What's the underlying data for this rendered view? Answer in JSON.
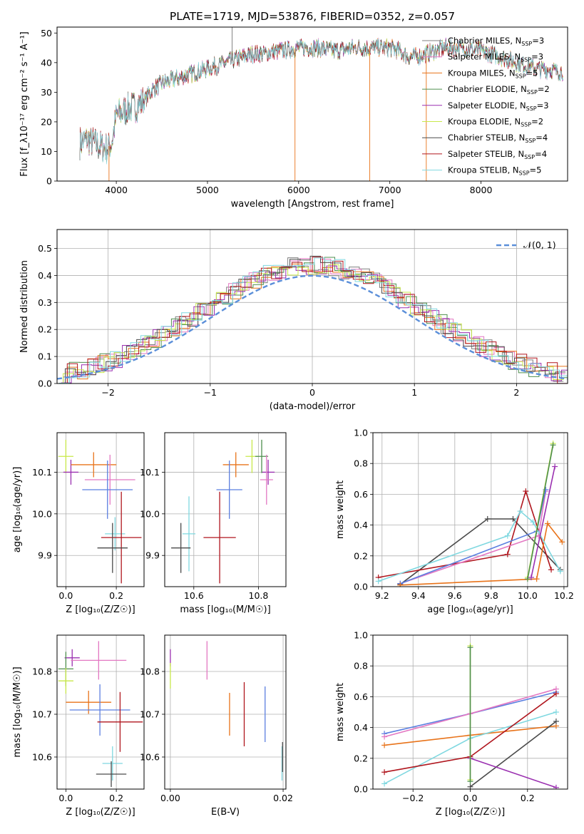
{
  "page": {
    "title": "PLATE=1719, MJD=53876, FIBERID=0352, z=0.057"
  },
  "colors": {
    "Chabrier MILES": "#7f7f7f",
    "Salpeter MILES": "#e377c2",
    "Kroupa MILES": "#e8731a",
    "Chabrier ELODIE": "#4f8f4f",
    "Salpeter ELODIE": "#9a2fb0",
    "Kroupa ELODIE": "#c8e84a",
    "Chabrier STELIB": "#4a4a4a",
    "Salpeter STELIB": "#b0161e",
    "Kroupa STELIB": "#7fd8e0",
    "normal": "#5b8fd9",
    "blue": "#5b7fe0"
  },
  "chart_data": [
    {
      "id": "spectrum",
      "type": "line",
      "title": "PLATE=1719, MJD=53876, FIBERID=0352, z=0.057",
      "xlabel": "wavelength [Angstrom, rest frame]",
      "ylabel": "Flux [f_λ10⁻¹⁷ erg cm⁻² s⁻¹ A⁻¹]",
      "xlim": [
        3350,
        8950
      ],
      "ylim": [
        0,
        52
      ],
      "xticks": [
        4000,
        5000,
        6000,
        7000,
        8000
      ],
      "yticks": [
        0,
        10,
        20,
        30,
        40,
        50
      ],
      "grid": false,
      "legend_position": "top-right",
      "legend": [
        {
          "name": "Chabrier MILES",
          "nssp": "3"
        },
        {
          "name": "Salpeter MILES",
          "nssp": "3"
        },
        {
          "name": "Kroupa MILES",
          "nssp": "5"
        },
        {
          "name": "Chabrier ELODIE",
          "nssp": "2"
        },
        {
          "name": "Salpeter ELODIE",
          "nssp": "3"
        },
        {
          "name": "Kroupa ELODIE",
          "nssp": "2"
        },
        {
          "name": "Chabrier STELIB",
          "nssp": "4"
        },
        {
          "name": "Salpeter STELIB",
          "nssp": "4"
        },
        {
          "name": "Kroupa STELIB",
          "nssp": "5"
        }
      ],
      "continuum_x": [
        3600,
        3700,
        3800,
        3900,
        3950,
        4000,
        4100,
        4200,
        4300,
        4400,
        4500,
        4600,
        4700,
        4800,
        4900,
        5000,
        5100,
        5200,
        5300,
        5400,
        5500,
        5600,
        5800,
        6000,
        6200,
        6400,
        6600,
        6800,
        7000,
        7100,
        7200,
        7300,
        7400,
        7500,
        7600,
        7800,
        8000,
        8200,
        8400,
        8600,
        8900
      ],
      "continuum_y": [
        13,
        14,
        12,
        11,
        13,
        22,
        24,
        25,
        27,
        31,
        33,
        34,
        35,
        36,
        37,
        38,
        39,
        40,
        41,
        42,
        43,
        43,
        44,
        45,
        45,
        44,
        45,
        45,
        45,
        44,
        42,
        42,
        43,
        44,
        45,
        45,
        44,
        42,
        40,
        38,
        37
      ],
      "dips_x": [
        3920,
        5960,
        6780,
        7400
      ],
      "spike_x": 5270,
      "spike_y": 52
    },
    {
      "id": "residuals",
      "type": "histogram",
      "xlabel": "(data-model)/error",
      "ylabel": "Normed distribution",
      "xlim": [
        -2.5,
        2.5
      ],
      "ylim": [
        0,
        0.57
      ],
      "xticks": [
        -2,
        -1,
        0,
        1,
        2
      ],
      "yticks": [
        0.0,
        0.1,
        0.2,
        0.3,
        0.4,
        0.5
      ],
      "grid": true,
      "legend_position": "top-right",
      "legend_label": "𝒩(0, 1)",
      "bin_width": 0.1,
      "series_order": [
        "Chabrier MILES",
        "Salpeter MILES",
        "Kroupa MILES",
        "Chabrier ELODIE",
        "Salpeter ELODIE",
        "Kroupa ELODIE",
        "Chabrier STELIB",
        "Salpeter STELIB",
        "Kroupa STELIB"
      ]
    },
    {
      "id": "age_vs_Z",
      "type": "errorbar",
      "xlabel": "Z [log₁₀(Z/Z☉)]",
      "ylabel": "age  [log₁₀(age/yr)]",
      "xlim": [
        -0.035,
        0.31
      ],
      "ylim": [
        9.825,
        10.195
      ],
      "xticks": [
        0.0,
        0.2
      ],
      "yticks": [
        9.9,
        10.0,
        10.1
      ],
      "grid": true,
      "points": [
        {
          "series": "Kroupa ELODIE",
          "x": 0.0,
          "y": 10.138,
          "xerr": 0.03,
          "yerr": 0.04
        },
        {
          "series": "Salpeter ELODIE",
          "x": 0.02,
          "y": 10.1,
          "xerr": 0.03,
          "yerr": 0.03
        },
        {
          "series": "Kroupa MILES",
          "x": 0.11,
          "y": 10.118,
          "xerr": 0.09,
          "yerr": 0.03
        },
        {
          "series": "Salpeter MILES",
          "x": 0.175,
          "y": 10.082,
          "xerr": 0.1,
          "yerr": 0.06
        },
        {
          "series": "blue",
          "x": 0.165,
          "y": 10.058,
          "xerr": 0.1,
          "yerr": 0.07
        },
        {
          "series": "Kroupa STELIB",
          "x": 0.195,
          "y": 9.952,
          "xerr": 0.04,
          "yerr": 0.04
        },
        {
          "series": "Salpeter STELIB",
          "x": 0.22,
          "y": 9.943,
          "xerr": 0.08,
          "yerr": 0.11
        },
        {
          "series": "Chabrier STELIB",
          "x": 0.185,
          "y": 9.918,
          "xerr": 0.06,
          "yerr": 0.06
        }
      ]
    },
    {
      "id": "age_vs_mass",
      "type": "errorbar",
      "xlabel": "mass [log₁₀(M/M☉)]",
      "xlim": [
        10.51,
        10.885
      ],
      "ylim": [
        9.825,
        10.195
      ],
      "xticks": [
        10.6,
        10.8
      ],
      "yticks": [
        9.9,
        10.0,
        10.1
      ],
      "grid": true,
      "points": [
        {
          "series": "Kroupa ELODIE",
          "x": 10.78,
          "y": 10.138,
          "xerr": 0.02,
          "yerr": 0.04
        },
        {
          "series": "Salpeter ELODIE",
          "x": 10.83,
          "y": 10.1,
          "xerr": 0.02,
          "yerr": 0.03
        },
        {
          "series": "Chabrier ELODIE",
          "x": 10.81,
          "y": 10.138,
          "xerr": 0.02,
          "yerr": 0.04
        },
        {
          "series": "Kroupa MILES",
          "x": 10.73,
          "y": 10.118,
          "xerr": 0.04,
          "yerr": 0.03
        },
        {
          "series": "Salpeter MILES",
          "x": 10.825,
          "y": 10.082,
          "xerr": 0.02,
          "yerr": 0.06
        },
        {
          "series": "blue",
          "x": 10.71,
          "y": 10.058,
          "xerr": 0.04,
          "yerr": 0.07
        },
        {
          "series": "Kroupa STELIB",
          "x": 10.585,
          "y": 9.952,
          "xerr": 0.02,
          "yerr": 0.09
        },
        {
          "series": "Salpeter STELIB",
          "x": 10.68,
          "y": 9.943,
          "xerr": 0.05,
          "yerr": 0.11
        },
        {
          "series": "Chabrier STELIB",
          "x": 10.56,
          "y": 9.918,
          "xerr": 0.03,
          "yerr": 0.06
        }
      ]
    },
    {
      "id": "mass_weight_vs_age",
      "type": "line",
      "xlabel": "age  [log₁₀(age/yr)]",
      "ylabel": "mass weight",
      "xlim": [
        9.15,
        10.22
      ],
      "ylim": [
        0.0,
        1.0
      ],
      "xticks": [
        9.2,
        9.4,
        9.6,
        9.8,
        10.0,
        10.2
      ],
      "yticks": [
        0.0,
        0.2,
        0.4,
        0.6,
        0.8,
        1.0
      ],
      "grid": true,
      "series": [
        {
          "name": "Chabrier STELIB",
          "x": [
            9.3,
            9.78,
            9.92,
            10.18
          ],
          "y": [
            0.015,
            0.44,
            0.44,
            0.11
          ]
        },
        {
          "name": "Salpeter STELIB",
          "x": [
            9.18,
            9.89,
            9.99,
            10.13
          ],
          "y": [
            0.06,
            0.21,
            0.62,
            0.11
          ]
        },
        {
          "name": "Salpeter MILES",
          "x": [
            9.3,
            10.06,
            10.1
          ],
          "y": [
            0.02,
            0.33,
            0.62
          ]
        },
        {
          "name": "blue",
          "x": [
            9.3,
            10.05,
            10.1
          ],
          "y": [
            0.02,
            0.36,
            0.63
          ]
        },
        {
          "name": "Kroupa MILES",
          "x": [
            9.3,
            10.05,
            10.11,
            10.19
          ],
          "y": [
            0.01,
            0.05,
            0.41,
            0.29
          ]
        },
        {
          "name": "Kroupa STELIB",
          "x": [
            9.18,
            9.89,
            9.96,
            10.03,
            10.18
          ],
          "y": [
            0.035,
            0.33,
            0.49,
            0.42,
            0.1
          ]
        },
        {
          "name": "Kroupa ELODIE",
          "x": [
            10.0,
            10.14
          ],
          "y": [
            0.06,
            0.93
          ]
        },
        {
          "name": "Salpeter ELODIE",
          "x": [
            10.02,
            10.15
          ],
          "y": [
            0.06,
            0.78
          ]
        },
        {
          "name": "Chabrier ELODIE",
          "x": [
            10.0,
            10.14
          ],
          "y": [
            0.05,
            0.92
          ]
        }
      ]
    },
    {
      "id": "mass_vs_Z",
      "type": "errorbar",
      "xlabel": "Z [log₁₀(Z/Z☉)]",
      "ylabel": "mass [log₁₀(M/M☉)]",
      "xlim": [
        -0.035,
        0.31
      ],
      "ylim": [
        10.525,
        10.885
      ],
      "xticks": [
        0.0,
        0.2
      ],
      "yticks": [
        10.6,
        10.7,
        10.8
      ],
      "grid": true,
      "points": [
        {
          "series": "Salpeter ELODIE",
          "x": 0.025,
          "y": 10.832,
          "xerr": 0.03,
          "yerr": 0.02
        },
        {
          "series": "Chabrier ELODIE",
          "x": 0.0,
          "y": 10.806,
          "xerr": 0.03,
          "yerr": 0.04
        },
        {
          "series": "Kroupa ELODIE",
          "x": 0.0,
          "y": 10.778,
          "xerr": 0.03,
          "yerr": 0.03
        },
        {
          "series": "Salpeter MILES",
          "x": 0.13,
          "y": 10.826,
          "xerr": 0.11,
          "yerr": 0.045
        },
        {
          "series": "Kroupa MILES",
          "x": 0.09,
          "y": 10.728,
          "xerr": 0.09,
          "yerr": 0.027
        },
        {
          "series": "blue",
          "x": 0.135,
          "y": 10.71,
          "xerr": 0.12,
          "yerr": 0.06
        },
        {
          "series": "Salpeter STELIB",
          "x": 0.215,
          "y": 10.682,
          "xerr": 0.09,
          "yerr": 0.07
        },
        {
          "series": "Kroupa STELIB",
          "x": 0.185,
          "y": 10.585,
          "xerr": 0.04,
          "yerr": 0.04
        },
        {
          "series": "Chabrier STELIB",
          "x": 0.18,
          "y": 10.56,
          "xerr": 0.06,
          "yerr": 0.03
        }
      ]
    },
    {
      "id": "mass_vs_ebv",
      "type": "errorbar",
      "xlabel": "E(B-V)",
      "xlim": [
        -0.001,
        0.0205
      ],
      "ylim": [
        10.525,
        10.885
      ],
      "xticks": [
        0.0,
        0.02
      ],
      "yticks": [
        10.6,
        10.7,
        10.8
      ],
      "grid": true,
      "points": [
        {
          "series": "Salpeter ELODIE",
          "x": 0.0,
          "y": 10.832,
          "yerr": 0.02
        },
        {
          "series": "Kroupa ELODIE",
          "x": 0.0,
          "y": 10.79,
          "yerr": 0.03
        },
        {
          "series": "Salpeter MILES",
          "x": 0.0065,
          "y": 10.826,
          "yerr": 0.045
        },
        {
          "series": "Kroupa MILES",
          "x": 0.0105,
          "y": 10.7,
          "yerr": 0.05
        },
        {
          "series": "Salpeter STELIB",
          "x": 0.0131,
          "y": 10.7,
          "yerr": 0.075
        },
        {
          "series": "blue",
          "x": 0.0168,
          "y": 10.7,
          "yerr": 0.065
        },
        {
          "series": "Kroupa STELIB",
          "x": 0.0198,
          "y": 10.585,
          "yerr": 0.04
        },
        {
          "series": "Chabrier STELIB",
          "x": 0.0199,
          "y": 10.6,
          "yerr": 0.035
        }
      ]
    },
    {
      "id": "mass_weight_vs_Z",
      "type": "line",
      "xlabel": "Z [log₁₀(Z/Z☉)]",
      "ylabel": "mass weight",
      "xlim": [
        -0.34,
        0.34
      ],
      "ylim": [
        0.0,
        1.0
      ],
      "xticks": [
        -0.2,
        0.0,
        0.2
      ],
      "yticks": [
        0.0,
        0.2,
        0.4,
        0.6,
        0.8,
        1.0
      ],
      "grid": true,
      "series": [
        {
          "name": "blue",
          "x": [
            -0.3,
            0.0,
            0.3
          ],
          "y": [
            0.36,
            0.49,
            0.63
          ]
        },
        {
          "name": "Salpeter MILES",
          "x": [
            -0.3,
            0.0,
            0.3
          ],
          "y": [
            0.34,
            0.49,
            0.65
          ]
        },
        {
          "name": "Kroupa MILES",
          "x": [
            -0.3,
            0.0,
            0.3
          ],
          "y": [
            0.285,
            0.35,
            0.41
          ]
        },
        {
          "name": "Kroupa STELIB",
          "x": [
            -0.3,
            0.0,
            0.3
          ],
          "y": [
            0.035,
            0.33,
            0.5
          ]
        },
        {
          "name": "Salpeter STELIB",
          "x": [
            -0.3,
            0.0,
            0.3
          ],
          "y": [
            0.11,
            0.21,
            0.62
          ]
        },
        {
          "name": "Chabrier STELIB",
          "x": [
            0.0,
            0.3
          ],
          "y": [
            0.015,
            0.44
          ]
        },
        {
          "name": "Salpeter ELODIE",
          "x": [
            0.0,
            0.3
          ],
          "y": [
            0.2,
            0.01
          ]
        },
        {
          "name": "Kroupa ELODIE",
          "x": [
            0.0,
            0.0
          ],
          "y": [
            0.06,
            0.93
          ]
        },
        {
          "name": "Chabrier ELODIE",
          "x": [
            0.0,
            0.0
          ],
          "y": [
            0.05,
            0.92
          ]
        }
      ]
    }
  ]
}
